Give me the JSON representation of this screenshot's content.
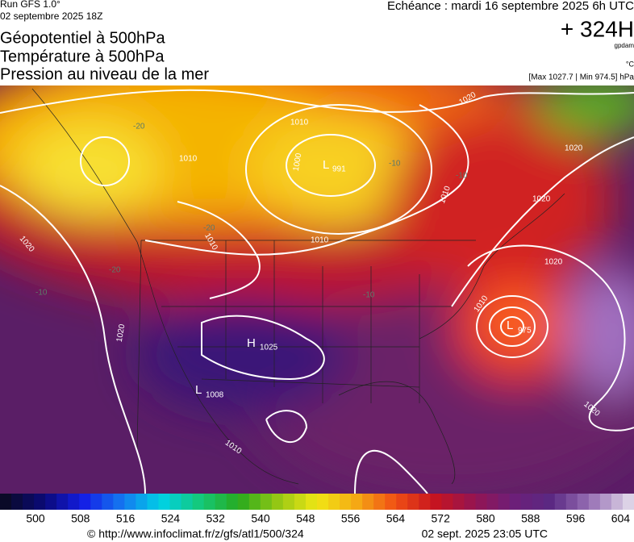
{
  "header": {
    "run": "Run GFS 1.0°",
    "run_date": "02 septembre 2025 18Z",
    "title_lines": [
      "Géopotentiel à 500hPa",
      "Température à 500hPa",
      "Pression au niveau de la mer"
    ],
    "forecast": "Echéance : mardi 16 septembre 2025 6h UTC",
    "lead": "+ 324H",
    "geo_unit": "gpdam",
    "temp_unit": "°C",
    "pressure_range": "[Max 1027.7 | Min 974.5] hPa"
  },
  "map": {
    "labels": [
      "1020",
      "-20",
      "1010",
      "1010",
      "1000",
      "L",
      "991",
      "-10",
      "1010",
      "1020",
      "-10",
      "1020",
      "-20",
      "1010",
      "1020",
      "1010",
      "-20",
      "1020",
      "-10",
      "-10",
      "1010",
      "L",
      "975",
      "1020",
      "H",
      "1025",
      "L",
      "1008",
      "1020",
      "1010"
    ]
  },
  "colorbar": {
    "labels": [
      "500",
      "508",
      "516",
      "524",
      "532",
      "540",
      "548",
      "556",
      "564",
      "572",
      "580",
      "588",
      "596",
      "604"
    ]
  },
  "footer": {
    "url": "© http://www.infoclimat.fr/z/gfs/atl1/500/324",
    "timestamp": "02 sept. 2025 23:05 UTC"
  }
}
